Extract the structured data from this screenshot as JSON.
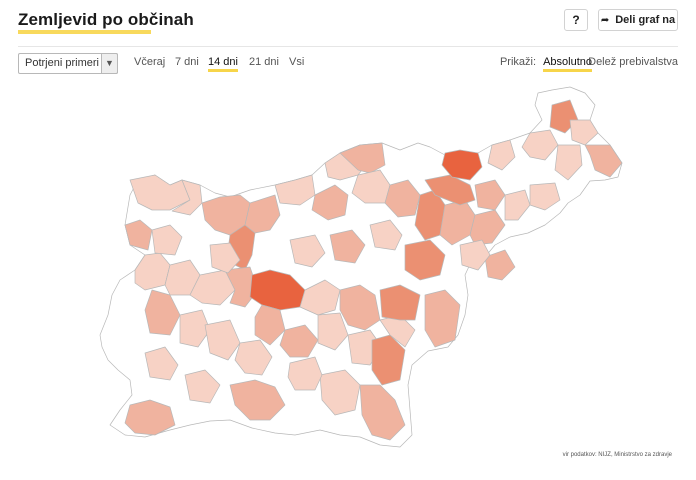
{
  "header": {
    "title": "Zemljevid po občinah",
    "help_label": "?",
    "share_label": "Deli graf na"
  },
  "controls": {
    "select_value": "Potrjeni primeri",
    "select_icon": "chevron-down-icon",
    "tabs": [
      "Včeraj",
      "7 dni",
      "14 dni",
      "21 dni",
      "Vsi"
    ],
    "active_tab": "14 dni",
    "show_label": "Prikaži:",
    "modes": [
      "Absolutno",
      "Delež prebivalstva"
    ],
    "active_mode": "Absolutno"
  },
  "map": {
    "colors": {
      "none": "#ffffff",
      "low": "#f7d2c5",
      "mid": "#f0b39f",
      "high": "#eb9072",
      "top": "#e8633f",
      "border": "#b8b8b8"
    }
  },
  "source": "vir podatkov: NIJZ, Ministrstvo za zdravje"
}
